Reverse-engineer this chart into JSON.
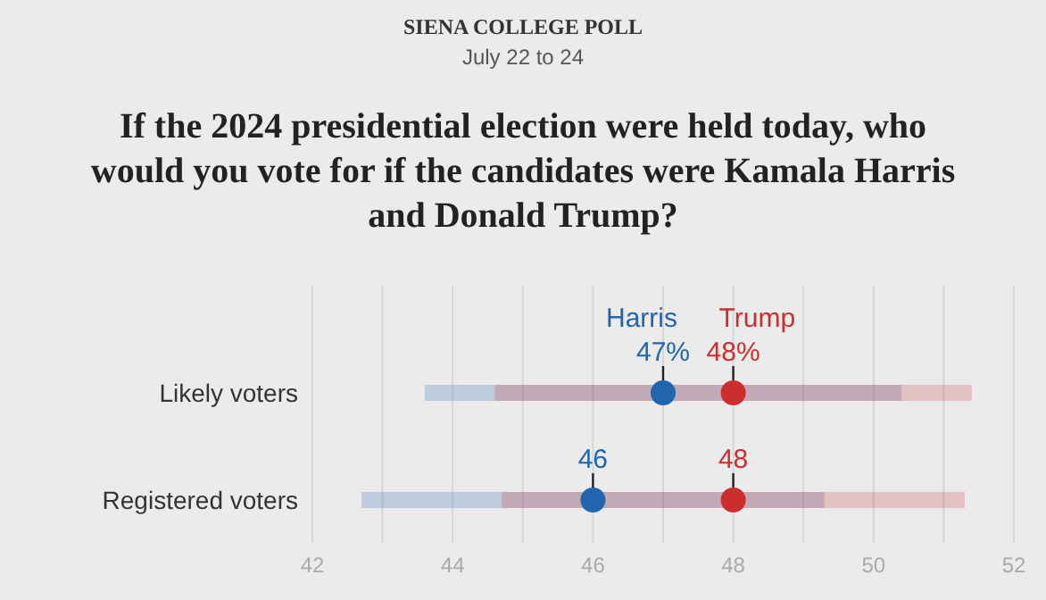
{
  "chart_data": {
    "type": "scatter",
    "orientation": "horizontal",
    "title": "If the 2024 presidential election were held today, who would you vote for if the candidates were Kamala Harris and Donald Trump?",
    "subtitle": "July 22 to 24",
    "annotations": [
      "SIENA COLLEGE POLL"
    ],
    "categories": [
      "Likely voters",
      "Registered voters"
    ],
    "series": [
      {
        "name": "Harris",
        "color": "#2166ac",
        "values": [
          47,
          46
        ],
        "errors": [
          3.4,
          3.3
        ],
        "value_labels": [
          "47%",
          "46"
        ]
      },
      {
        "name": "Trump",
        "color": "#cc2e2e",
        "values": [
          48,
          48
        ],
        "errors": [
          3.4,
          3.3
        ],
        "value_labels": [
          "48%",
          "48"
        ]
      }
    ],
    "xlim": [
      42,
      52
    ],
    "xticks": [
      42,
      {
        "value": 43,
        "label": null
      },
      44,
      {
        "value": 45,
        "label": null
      },
      46,
      {
        "value": 47,
        "label": null
      },
      48,
      {
        "value": 49,
        "label": null
      },
      50,
      {
        "value": 51,
        "label": null
      },
      52
    ],
    "grid": "x"
  }
}
